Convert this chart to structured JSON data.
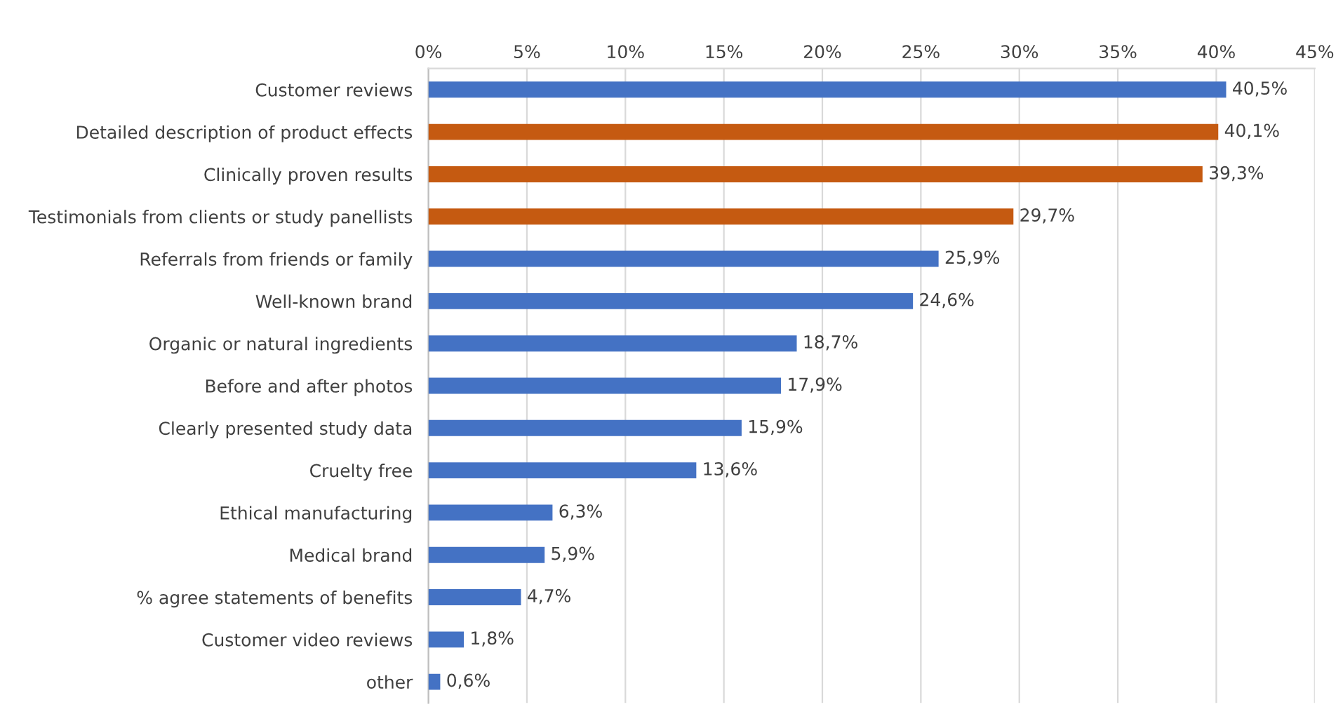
{
  "chart_data": {
    "type": "bar",
    "orientation": "horizontal",
    "categories": [
      "Customer reviews",
      "Detailed description of product effects",
      "Clinically proven results",
      "Testimonials from clients or study panellists",
      "Referrals from friends or family",
      "Well-known brand",
      "Organic or natural ingredients",
      "Before and after photos",
      "Clearly presented study data",
      "Cruelty free",
      "Ethical manufacturing",
      "Medical brand",
      "% agree statements of benefits",
      "Customer video reviews",
      "other"
    ],
    "values": [
      40.5,
      40.1,
      39.3,
      29.7,
      25.9,
      24.6,
      18.7,
      17.9,
      15.9,
      13.6,
      6.3,
      5.9,
      4.7,
      1.8,
      0.6
    ],
    "value_labels": [
      "40,5%",
      "40,1%",
      "39,3%",
      "29,7%",
      "25,9%",
      "24,6%",
      "18,7%",
      "17,9%",
      "15,9%",
      "13,6%",
      "6,3%",
      "5,9%",
      "4,7%",
      "1,8%",
      "0,6%"
    ],
    "colors": [
      "#4472c4",
      "#c55a11",
      "#c55a11",
      "#c55a11",
      "#4472c4",
      "#4472c4",
      "#4472c4",
      "#4472c4",
      "#4472c4",
      "#4472c4",
      "#4472c4",
      "#4472c4",
      "#4472c4",
      "#4472c4",
      "#4472c4"
    ],
    "xlim": [
      0,
      45
    ],
    "xticks": [
      {
        "value": 0,
        "label": "0%"
      },
      {
        "value": 5,
        "label": "5%"
      },
      {
        "value": 10,
        "label": "10%"
      },
      {
        "value": 15,
        "label": "15%"
      },
      {
        "value": 20,
        "label": "20%"
      },
      {
        "value": 25,
        "label": "25%"
      },
      {
        "value": 30,
        "label": "30%"
      },
      {
        "value": 35,
        "label": "35%"
      },
      {
        "value": 40,
        "label": "40%"
      },
      {
        "value": 45,
        "label": "45%"
      }
    ],
    "grid": "x",
    "legend": false
  }
}
